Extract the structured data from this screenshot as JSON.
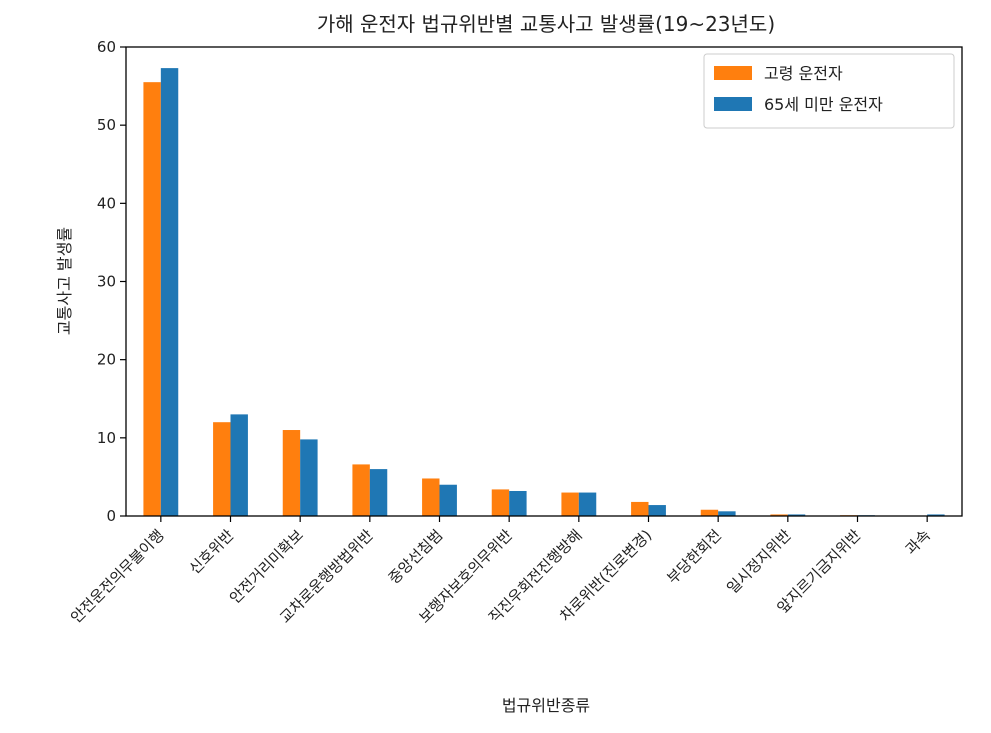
{
  "chart_data": {
    "type": "bar",
    "title": "가해 운전자 법규위반별 교통사고 발생률(19~23년도)",
    "xlabel": "법규위반종류",
    "ylabel": "교통사고 발생률",
    "ylim": [
      0,
      60
    ],
    "yticks": [
      "0",
      "10",
      "20",
      "30",
      "40",
      "50",
      "60"
    ],
    "grid": false,
    "legend_position": "upper-right",
    "categories": [
      "안전운전의무불이행",
      "신호위반",
      "안전거리미확보",
      "교차로운행방법위반",
      "중앙선침범",
      "보행자보호의무위반",
      "직진우회전진행방해",
      "차로위반(진로변경)",
      "부당한회전",
      "일시정지위반",
      "앞지르기금지위반",
      "과속"
    ],
    "series": [
      {
        "name": "고령 운전자",
        "color": "#ff7f0e",
        "values": [
          55.5,
          12.0,
          11.0,
          6.6,
          4.8,
          3.4,
          3.0,
          1.8,
          0.8,
          0.2,
          0.1,
          0.05
        ]
      },
      {
        "name": "65세 미만 운전자",
        "color": "#1f77b4",
        "values": [
          57.3,
          13.0,
          9.8,
          6.0,
          4.0,
          3.2,
          3.0,
          1.4,
          0.6,
          0.2,
          0.1,
          0.2
        ]
      }
    ]
  }
}
